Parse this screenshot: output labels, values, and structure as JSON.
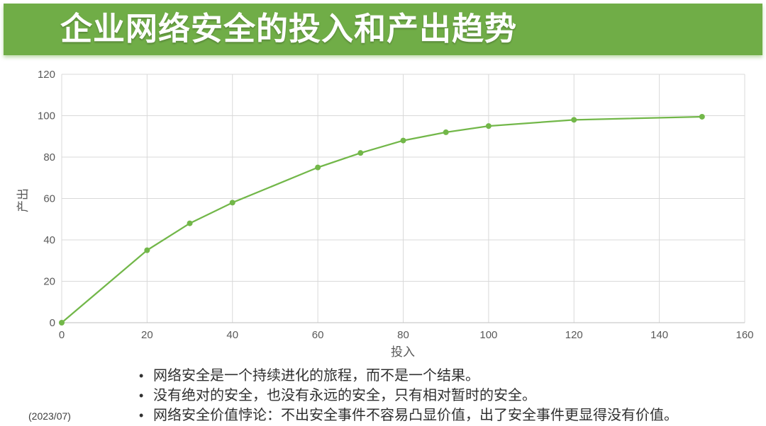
{
  "slide": {
    "title": "企业网络安全的投入和产出趋势",
    "date_label": "(2023/07)"
  },
  "bullets": {
    "marker": "•",
    "items": [
      "网络安全是一个持续进化的旅程，而不是一个结果。",
      "没有绝对的安全，也没有永远的安全，只有相对暂时的安全。",
      "网络安全价值悖论：不出安全事件不容易凸显价值，出了安全事件更显得没有价值。"
    ]
  },
  "colors": {
    "banner_green": "#70AD47",
    "line_green": "#72B749",
    "gridline": "#D9D9D9",
    "axis_line": "#BFBFBF",
    "axis_text": "#595959",
    "body_text": "#303030"
  },
  "chart_data": {
    "type": "line",
    "title": "",
    "xlabel": "投入",
    "ylabel": "产出",
    "x": [
      0,
      20,
      30,
      40,
      60,
      70,
      80,
      90,
      100,
      120,
      150
    ],
    "y": [
      0,
      35,
      48,
      58,
      75,
      82,
      88,
      92,
      95,
      98,
      99.5
    ],
    "xlim": [
      0,
      160
    ],
    "ylim": [
      0,
      120
    ],
    "x_ticks": [
      0,
      20,
      40,
      60,
      80,
      100,
      120,
      140,
      160
    ],
    "y_ticks": [
      0,
      20,
      40,
      60,
      80,
      100,
      120
    ],
    "grid": true,
    "legend": false,
    "marker": "circle",
    "marker_radius": 4,
    "line_width": 2.25
  }
}
